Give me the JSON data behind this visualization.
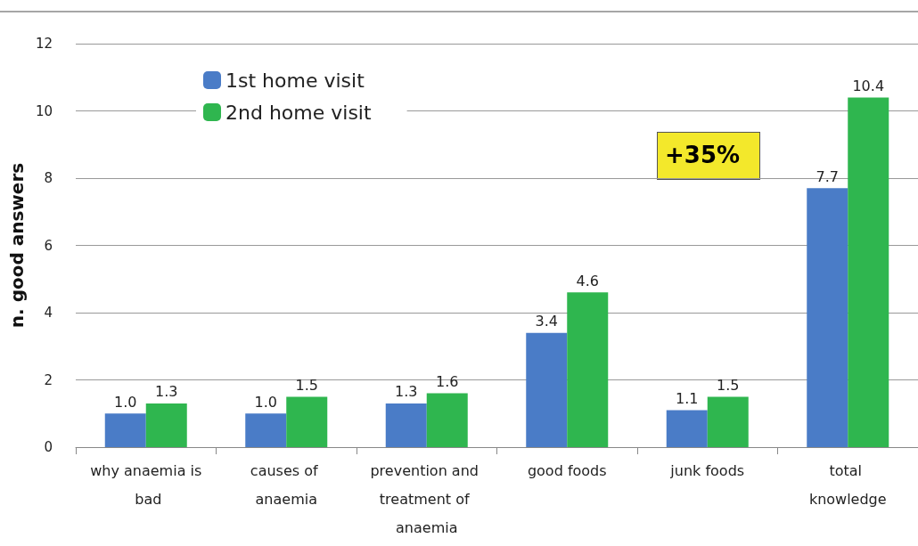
{
  "chart_data": {
    "type": "bar",
    "ylabel": "n. good answers",
    "categories": [
      "why anaemia is bad",
      "causes of anaemia",
      "prevention and treatment of anaemia",
      "good foods",
      "junk foods",
      "total knowledge"
    ],
    "series": [
      {
        "name": "1st home visit",
        "color": "#4a7cc7",
        "values": [
          1.0,
          1.0,
          1.3,
          3.4,
          1.1,
          7.7
        ],
        "value_labels": [
          "1.0",
          "1.0",
          "1.3",
          "3.4",
          "1.1",
          "7.7"
        ]
      },
      {
        "name": "2nd home visit",
        "color": "#2fb64f",
        "values": [
          1.3,
          1.5,
          1.6,
          4.6,
          1.5,
          10.4
        ],
        "value_labels": [
          "1.3",
          "1.5",
          "1.6",
          "4.6",
          "1.5",
          "10.4"
        ]
      }
    ],
    "ylim": [
      0,
      12
    ],
    "yticks": [
      0,
      2,
      4,
      6,
      8,
      10,
      12
    ],
    "grid": "y",
    "legend": "top left",
    "annotations": [
      "+35%"
    ]
  }
}
